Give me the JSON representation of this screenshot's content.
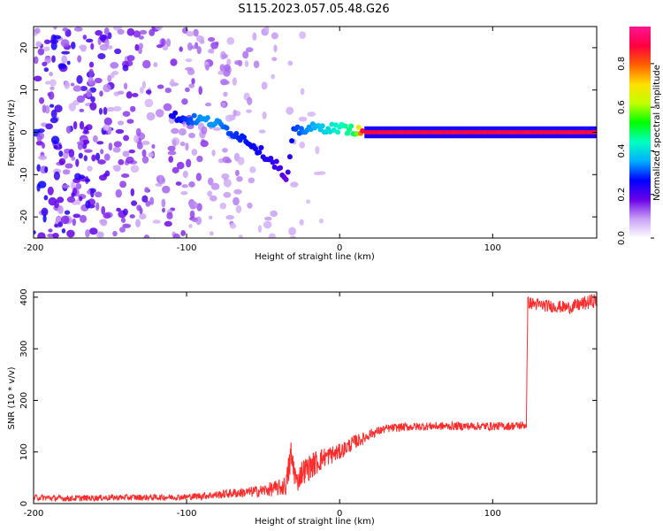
{
  "title": "S115.2023.057.05.48.G26",
  "chart_data": [
    {
      "type": "heatmap",
      "xlabel": "Height of straight line (km)",
      "ylabel": "Frequency (Hz)",
      "xlim": [
        -200,
        168
      ],
      "ylim": [
        -25,
        25
      ],
      "x_ticks": [
        -200,
        -100,
        0,
        100
      ],
      "x_tick_labels": [
        "-200",
        "-100",
        "0",
        "100"
      ],
      "y_ticks": [
        -20,
        -10,
        0,
        10,
        20
      ],
      "y_tick_labels": [
        "-20",
        "-10",
        "0",
        "10",
        "20"
      ],
      "colorbar": {
        "label": "Normalized spectral amplitude",
        "range": [
          0,
          1
        ],
        "ticks": [
          0.0,
          0.2,
          0.4,
          0.6,
          0.8
        ],
        "tick_labels": [
          "0.0",
          "0.2",
          "0.4",
          "0.6",
          "0.8"
        ],
        "colormap": [
          "#ffffff",
          "#c9a0f5",
          "#6a00e8",
          "#0000ff",
          "#00b0ff",
          "#00ffc0",
          "#00ff00",
          "#c0ff00",
          "#ffe000",
          "#ff6000",
          "#ff0040",
          "#ff1493"
        ]
      },
      "ridge": {
        "description_x": [
          -110,
          -100,
          -90,
          -80,
          -70,
          -60,
          -50,
          -40,
          -35,
          -30,
          -20,
          -10,
          0,
          10,
          15,
          50,
          100,
          168
        ],
        "frequency": [
          4,
          3,
          3,
          2,
          0,
          -2,
          -5,
          -8,
          -12,
          0,
          1,
          1,
          1,
          0.5,
          0,
          0,
          0,
          0
        ],
        "amplitude": [
          0.25,
          0.3,
          0.35,
          0.35,
          0.3,
          0.28,
          0.25,
          0.22,
          0.18,
          0.3,
          0.35,
          0.4,
          0.45,
          0.5,
          0.9,
          0.9,
          0.9,
          0.9
        ]
      },
      "grid": false
    },
    {
      "type": "line",
      "xlabel": "Height of straight line (km)",
      "ylabel": "SNR (10 * v/v)",
      "xlim": [
        -200,
        168
      ],
      "ylim": [
        0,
        410
      ],
      "x_ticks": [
        -200,
        -100,
        0,
        100
      ],
      "x_tick_labels": [
        "-200",
        "-100",
        "0",
        "100"
      ],
      "y_ticks": [
        0,
        100,
        200,
        300,
        400
      ],
      "y_tick_labels": [
        "0",
        "100",
        "200",
        "300",
        "400"
      ],
      "color": "#ff2a2a",
      "series": [
        {
          "x": [
            -200,
            -180,
            -160,
            -140,
            -120,
            -100,
            -90,
            -80,
            -70,
            -60,
            -50,
            -45,
            -40,
            -35,
            -32,
            -30,
            -28,
            -25,
            -20,
            -15,
            -10,
            -5,
            0,
            5,
            10,
            15,
            20,
            30,
            40,
            60,
            80,
            100,
            110,
            122,
            123,
            130,
            140,
            150,
            160,
            168
          ],
          "y": [
            12,
            10,
            11,
            12,
            12,
            13,
            15,
            17,
            20,
            22,
            25,
            28,
            30,
            35,
            90,
            70,
            40,
            60,
            70,
            80,
            90,
            95,
            100,
            110,
            120,
            125,
            135,
            145,
            148,
            150,
            150,
            150,
            150,
            152,
            390,
            385,
            382,
            380,
            388,
            395
          ],
          "noise": [
            6,
            6,
            6,
            6,
            6,
            6,
            7,
            8,
            9,
            10,
            12,
            14,
            16,
            20,
            40,
            30,
            20,
            25,
            25,
            25,
            20,
            18,
            16,
            15,
            14,
            12,
            10,
            8,
            8,
            8,
            8,
            8,
            8,
            8,
            12,
            12,
            12,
            12,
            14,
            14
          ]
        }
      ],
      "grid": false
    }
  ]
}
